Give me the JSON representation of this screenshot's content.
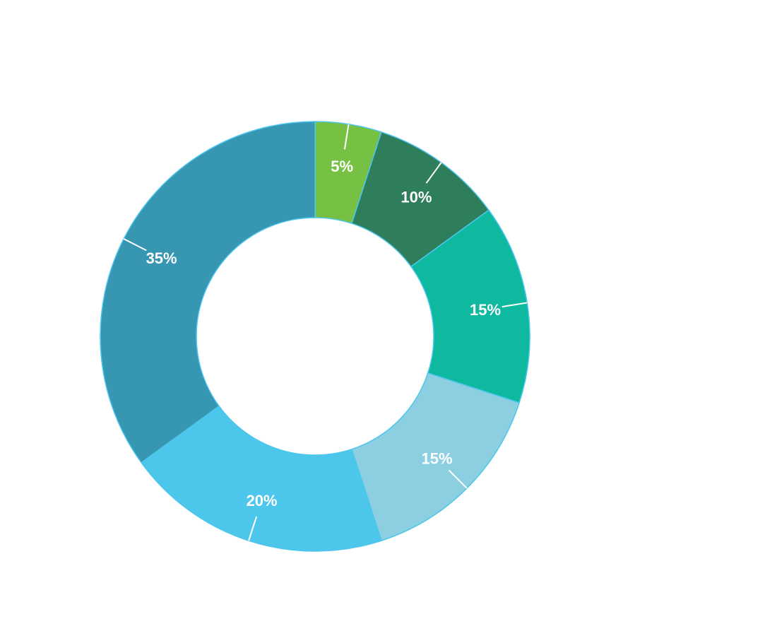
{
  "chart_data": {
    "type": "pie",
    "variant": "donut",
    "start": "top",
    "direction": "clockwise",
    "legend": "none",
    "slices": [
      {
        "label": "5%",
        "value": 5,
        "color": "#76c043"
      },
      {
        "label": "10%",
        "value": 10,
        "color": "#2e7d5b"
      },
      {
        "label": "15%",
        "value": 15,
        "color": "#0fb9a0"
      },
      {
        "label": "15%",
        "value": 15,
        "color": "#8bcfe0"
      },
      {
        "label": "20%",
        "value": 20,
        "color": "#4dc6ec"
      },
      {
        "label": "35%",
        "value": 35,
        "color": "#3796b1"
      }
    ],
    "outline_color": "#4dc6ec",
    "leader_color": "#ffffff"
  }
}
